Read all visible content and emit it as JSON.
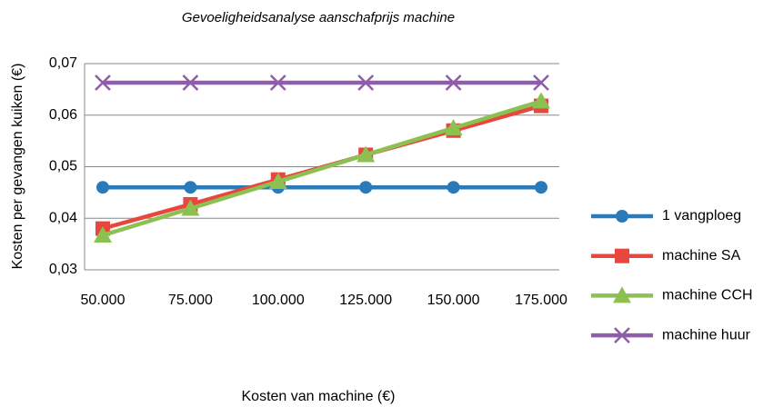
{
  "chart_data": {
    "type": "line",
    "title": "Gevoeligheidsanalyse aanschafprijs machine",
    "xlabel": "Kosten van machine (€)",
    "ylabel": "Kosten per gevangen kuiken (€)",
    "categories": [
      "50.000",
      "75.000",
      "100.000",
      "125.000",
      "150.000",
      "175.000"
    ],
    "ylim": [
      0.03,
      0.07
    ],
    "yticks": [
      {
        "value": 0.03,
        "label": "0,03"
      },
      {
        "value": 0.04,
        "label": "0,04"
      },
      {
        "value": 0.05,
        "label": "0,05"
      },
      {
        "value": 0.06,
        "label": "0,06"
      },
      {
        "value": 0.07,
        "label": "0,07"
      }
    ],
    "grid": true,
    "legend": "right",
    "series": [
      {
        "name": "1 vangploeg",
        "color": "#2a7ab9",
        "marker": "circle",
        "values": [
          0.046,
          0.046,
          0.046,
          0.046,
          0.046,
          0.046
        ]
      },
      {
        "name": "machine SA",
        "color": "#e8473f",
        "marker": "square",
        "values": [
          0.038,
          0.0427,
          0.0475,
          0.0523,
          0.057,
          0.0618
        ]
      },
      {
        "name": "machine CCH",
        "color": "#8cc152",
        "marker": "triangle",
        "values": [
          0.0367,
          0.0419,
          0.0471,
          0.0523,
          0.0575,
          0.0627
        ]
      },
      {
        "name": "machine huur",
        "color": "#8e5ea8",
        "marker": "x",
        "values": [
          0.0663,
          0.0663,
          0.0663,
          0.0663,
          0.0663,
          0.0663
        ]
      }
    ]
  }
}
